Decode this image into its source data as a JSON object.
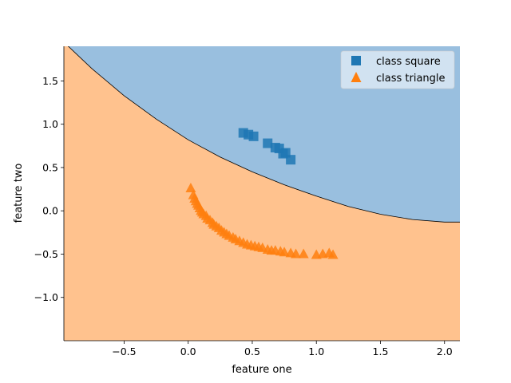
{
  "chart_data": {
    "type": "scatter",
    "title": "",
    "xlabel": "feature one",
    "ylabel": "feature two",
    "xlim": [
      -0.97,
      2.12
    ],
    "ylim": [
      -1.5,
      1.9
    ],
    "xticks": [
      -0.5,
      0.0,
      0.5,
      1.0,
      1.5,
      2.0
    ],
    "xtick_labels": [
      "−0.5",
      "0.0",
      "0.5",
      "1.0",
      "1.5",
      "2.0"
    ],
    "yticks": [
      -1.0,
      -0.5,
      0.0,
      0.5,
      1.0,
      1.5
    ],
    "ytick_labels": [
      "−1.0",
      "−0.5",
      "0.0",
      "0.5",
      "1.0",
      "1.5"
    ],
    "grid": false,
    "legend_position": "top-right",
    "decision_boundary": {
      "description_colors": {
        "upper_region": "#99bfdf",
        "lower_region": "#ffc28e",
        "line": "#000000"
      },
      "x": [
        -0.95,
        -0.75,
        -0.5,
        -0.25,
        0.0,
        0.25,
        0.5,
        0.75,
        1.0,
        1.25,
        1.5,
        1.75,
        2.0,
        2.12
      ],
      "y": [
        1.92,
        1.64,
        1.33,
        1.06,
        0.82,
        0.62,
        0.45,
        0.3,
        0.17,
        0.05,
        -0.04,
        -0.1,
        -0.13,
        -0.13
      ]
    },
    "series": [
      {
        "name": "class square",
        "marker": "square",
        "color": "#1f77b4",
        "x": [
          0.43,
          0.47,
          0.51,
          0.62,
          0.68,
          0.71,
          0.74,
          0.76,
          0.8
        ],
        "y": [
          0.9,
          0.88,
          0.86,
          0.78,
          0.73,
          0.72,
          0.66,
          0.67,
          0.59
        ]
      },
      {
        "name": "class triangle",
        "marker": "triangle",
        "color": "#ff7f0e",
        "x": [
          0.02,
          0.04,
          0.05,
          0.06,
          0.07,
          0.08,
          0.09,
          0.1,
          0.11,
          0.12,
          0.14,
          0.15,
          0.17,
          0.19,
          0.2,
          0.22,
          0.24,
          0.26,
          0.28,
          0.3,
          0.32,
          0.35,
          0.37,
          0.4,
          0.43,
          0.46,
          0.49,
          0.52,
          0.55,
          0.58,
          0.62,
          0.65,
          0.68,
          0.72,
          0.75,
          0.8,
          0.84,
          0.9,
          1.0,
          1.05,
          1.1,
          1.13
        ],
        "y": [
          0.26,
          0.18,
          0.14,
          0.11,
          0.08,
          0.06,
          0.03,
          0.0,
          -0.02,
          -0.04,
          -0.06,
          -0.09,
          -0.11,
          -0.14,
          -0.16,
          -0.18,
          -0.2,
          -0.23,
          -0.25,
          -0.27,
          -0.29,
          -0.31,
          -0.33,
          -0.35,
          -0.37,
          -0.39,
          -0.4,
          -0.41,
          -0.42,
          -0.43,
          -0.45,
          -0.46,
          -0.46,
          -0.47,
          -0.48,
          -0.49,
          -0.5,
          -0.5,
          -0.51,
          -0.5,
          -0.49,
          -0.51
        ]
      }
    ]
  }
}
